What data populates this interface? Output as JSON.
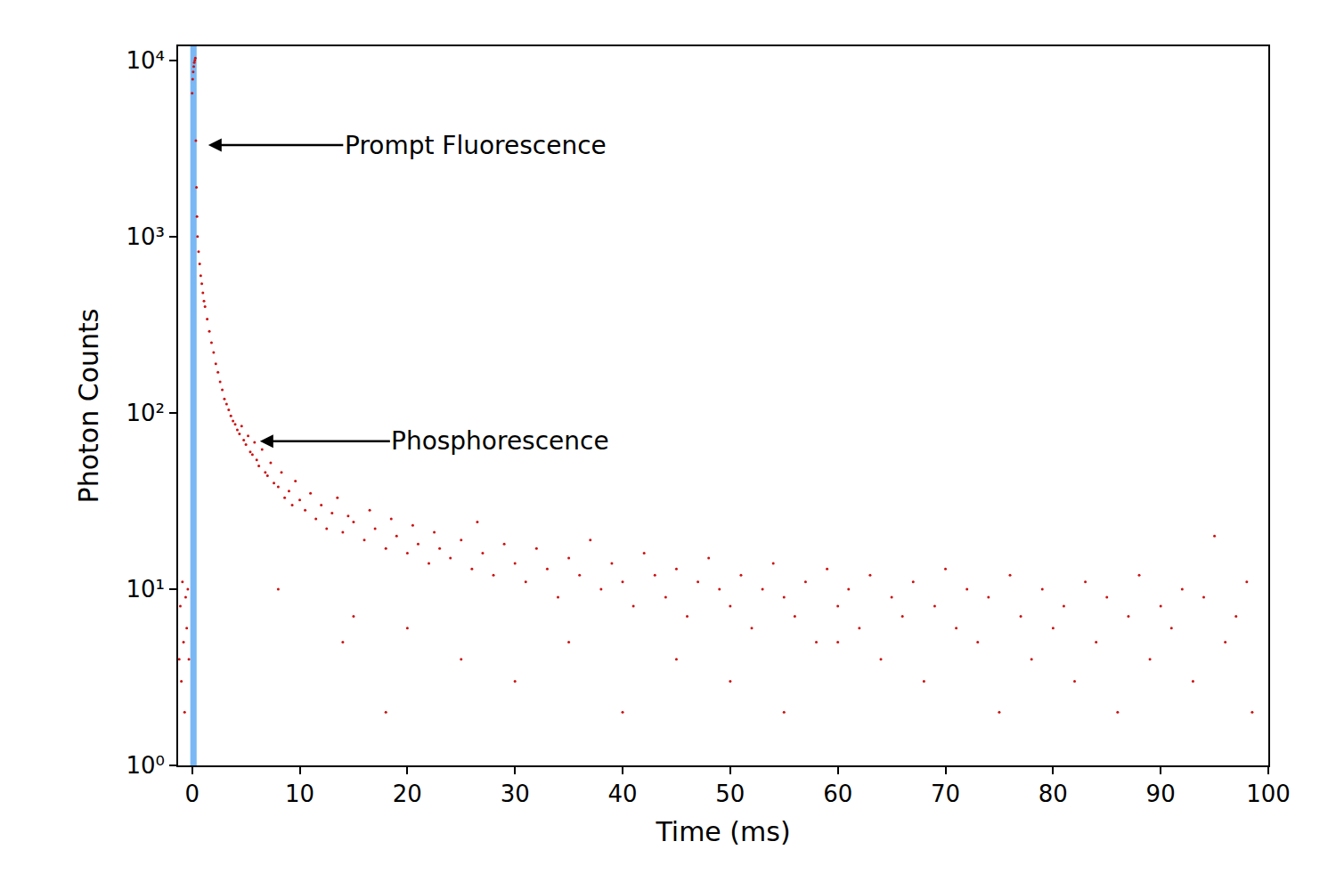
{
  "chart_data": {
    "type": "scatter",
    "x_label": "Time (ms)",
    "y_label": "Photon Counts",
    "color": "#cc1111",
    "marker": "dot",
    "log": "y",
    "grid": false,
    "xlim": [
      -1.3,
      100
    ],
    "xticks": [
      0,
      10,
      20,
      30,
      40,
      50,
      60,
      70,
      80,
      90,
      100
    ],
    "ylim": [
      1,
      12000
    ],
    "yticks": [
      {
        "value": 1,
        "label": "10⁰"
      },
      {
        "value": 10,
        "label": "10¹"
      },
      {
        "value": 100,
        "label": "10²"
      },
      {
        "value": 1000,
        "label": "10³"
      },
      {
        "value": 10000,
        "label": "10⁴"
      }
    ],
    "shaded_region": {
      "x0": -0.17,
      "x1": 0.42,
      "color": "#7ab8f5"
    },
    "annotations": [
      {
        "text": "Prompt Fluorescence",
        "x": 1.5,
        "y": 3300
      },
      {
        "text": "Phosphorescence",
        "x": 6.3,
        "y": 69
      }
    ],
    "x": [
      -1.2,
      -1.1,
      -1.0,
      -0.9,
      -0.8,
      -0.7,
      -0.6,
      -0.5,
      -0.4,
      -0.3,
      0.0,
      0.05,
      0.1,
      0.15,
      0.2,
      0.25,
      0.3,
      0.35,
      0.4,
      0.45,
      0.5,
      0.6,
      0.7,
      0.8,
      0.9,
      1.0,
      1.1,
      1.2,
      1.4,
      1.6,
      1.8,
      2.0,
      2.2,
      2.4,
      2.6,
      2.8,
      3.0,
      3.2,
      3.4,
      3.6,
      3.8,
      4.0,
      4.2,
      4.4,
      4.6,
      4.8,
      5.0,
      5.2,
      5.4,
      5.6,
      5.8,
      6.0,
      6.2,
      6.5,
      6.8,
      7.0,
      7.3,
      7.6,
      8.0,
      8.3,
      8.6,
      9.0,
      9.3,
      9.6,
      10,
      10.5,
      11,
      11.5,
      12,
      12.5,
      13,
      13.5,
      14,
      14.5,
      15,
      16,
      16.5,
      17,
      18,
      18.5,
      19,
      20,
      20.5,
      21,
      22,
      22.5,
      23,
      24,
      25,
      26,
      26.5,
      27,
      28,
      29,
      30,
      31,
      32,
      33,
      34,
      35,
      36,
      37,
      38,
      39,
      40,
      41,
      42,
      43,
      44,
      45,
      46,
      47,
      48,
      49,
      50,
      51,
      52,
      53,
      54,
      55,
      56,
      57,
      58,
      59,
      60,
      61,
      62,
      63,
      64,
      65,
      66,
      67,
      68,
      69,
      70,
      71,
      72,
      73,
      74,
      75,
      76,
      77,
      78,
      79,
      80,
      81,
      82,
      83,
      84,
      85,
      86,
      87,
      88,
      89,
      90,
      91,
      92,
      93,
      94,
      95,
      96,
      97,
      98,
      98.5,
      8,
      14,
      15,
      18,
      20,
      25,
      30,
      35,
      40,
      45,
      50,
      55,
      60
    ],
    "values": [
      4,
      8,
      3,
      11,
      5,
      2,
      9,
      6,
      10,
      4,
      6500,
      7800,
      8600,
      9200,
      9700,
      10000,
      10300,
      3500,
      1900,
      1300,
      1000,
      820,
      700,
      600,
      540,
      480,
      430,
      400,
      340,
      290,
      250,
      220,
      190,
      170,
      150,
      135,
      120,
      112,
      104,
      96,
      90,
      86,
      80,
      76,
      84,
      70,
      66,
      74,
      60,
      58,
      68,
      54,
      50,
      62,
      46,
      44,
      52,
      40,
      38,
      46,
      33,
      36,
      30,
      41,
      32,
      28,
      35,
      25,
      30,
      22,
      27,
      33,
      21,
      26,
      24,
      19,
      28,
      22,
      17,
      25,
      20,
      16,
      23,
      18,
      14,
      21,
      17,
      15,
      19,
      13,
      24,
      16,
      12,
      18,
      14,
      11,
      17,
      13,
      9,
      15,
      12,
      19,
      10,
      14,
      11,
      8,
      16,
      12,
      9,
      13,
      7,
      11,
      15,
      10,
      8,
      12,
      6,
      10,
      14,
      9,
      7,
      11,
      5,
      13,
      8,
      10,
      6,
      12,
      4,
      9,
      7,
      11,
      3,
      8,
      13,
      6,
      10,
      5,
      9,
      2,
      12,
      7,
      4,
      10,
      6,
      8,
      3,
      11,
      5,
      9,
      2,
      7,
      12,
      4,
      8,
      6,
      10,
      3,
      9,
      20,
      5,
      7,
      11,
      2,
      10,
      5,
      7,
      2,
      6,
      4,
      3,
      5,
      2,
      4,
      3,
      2,
      5
    ]
  }
}
